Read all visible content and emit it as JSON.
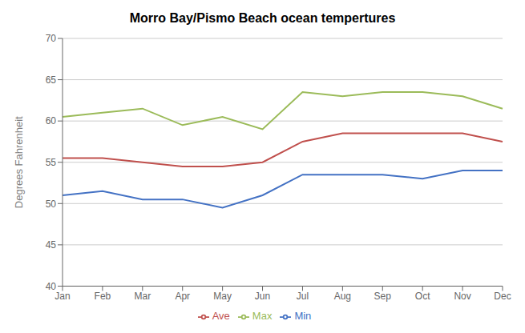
{
  "chart_data": {
    "type": "line",
    "title": "Morro Bay/Pismo Beach ocean tempertures",
    "ylabel": "Degrees Fahrenheit",
    "categories": [
      "Jan",
      "Feb",
      "Mar",
      "Apr",
      "May",
      "Jun",
      "Jul",
      "Aug",
      "Sep",
      "Oct",
      "Nov",
      "Dec"
    ],
    "series": [
      {
        "name": "Min",
        "color": "#4472C4",
        "values": [
          51,
          51.5,
          50.5,
          50.5,
          49.5,
          51,
          53.5,
          53.5,
          53.5,
          53,
          54,
          54
        ]
      },
      {
        "name": "Ave",
        "color": "#C0504D",
        "values": [
          55.5,
          55.5,
          55,
          54.5,
          54.5,
          55,
          57.5,
          58.5,
          58.5,
          58.5,
          58.5,
          57.5
        ]
      },
      {
        "name": "Max",
        "color": "#9BBB59",
        "values": [
          60.5,
          61,
          61.5,
          59.5,
          60.5,
          59,
          63.5,
          63,
          63.5,
          63.5,
          63,
          61.5
        ]
      }
    ],
    "ylim": [
      40,
      70
    ],
    "yticks": [
      40,
      45,
      50,
      55,
      60,
      65,
      70
    ],
    "grid": true,
    "legend": "bottom",
    "marker": "none"
  }
}
